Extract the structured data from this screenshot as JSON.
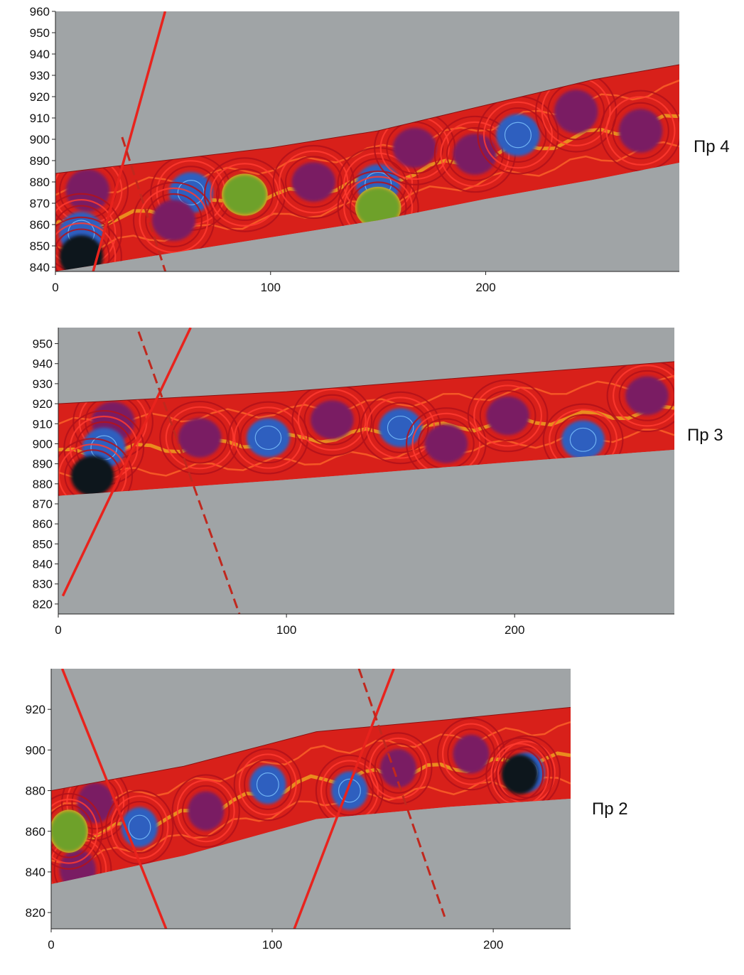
{
  "colors": {
    "background": "#a0a4a6",
    "fault_line": "#e8231d",
    "fault_dash": "#c0281e",
    "contour_fill": "#d8201a",
    "high": "#7a1f63",
    "low": "#2d5fbf",
    "deep_low": "#10131f",
    "mid_yellow": "#f0b020",
    "mid_green": "#6ea12b"
  },
  "chart_data": [
    {
      "type": "heatmap",
      "panel_label": "Пр 4",
      "xlim": [
        0,
        290
      ],
      "ylim": [
        838,
        960
      ],
      "x_ticks": [
        "0",
        "100",
        "200"
      ],
      "y_ticks": [
        "840",
        "850",
        "860",
        "870",
        "880",
        "890",
        "900",
        "910",
        "920",
        "930",
        "940",
        "950",
        "960"
      ],
      "section_top": [
        [
          0,
          884
        ],
        [
          50,
          890
        ],
        [
          100,
          896
        ],
        [
          150,
          904
        ],
        [
          200,
          916
        ],
        [
          250,
          928
        ],
        [
          290,
          935
        ]
      ],
      "section_bottom": [
        [
          0,
          838
        ],
        [
          50,
          846
        ],
        [
          100,
          854
        ],
        [
          150,
          862
        ],
        [
          200,
          872
        ],
        [
          250,
          881
        ],
        [
          290,
          889
        ]
      ],
      "faults": [
        {
          "style": "solid",
          "points": [
            [
              17,
              836
            ],
            [
              51,
              960
            ]
          ]
        },
        {
          "style": "dashed",
          "points": [
            [
              31,
              901
            ],
            [
              53,
              832
            ]
          ]
        }
      ],
      "anomalies": [
        {
          "kind": "high",
          "x": 15,
          "y": 876
        },
        {
          "kind": "low",
          "x": 12,
          "y": 856
        },
        {
          "kind": "deep-low",
          "x": 12,
          "y": 845
        },
        {
          "kind": "low",
          "x": 63,
          "y": 875
        },
        {
          "kind": "mid",
          "x": 88,
          "y": 874
        },
        {
          "kind": "high",
          "x": 120,
          "y": 880
        },
        {
          "kind": "high",
          "x": 55,
          "y": 862
        },
        {
          "kind": "low",
          "x": 150,
          "y": 879
        },
        {
          "kind": "mid",
          "x": 150,
          "y": 868
        },
        {
          "kind": "high",
          "x": 167,
          "y": 896
        },
        {
          "kind": "high",
          "x": 195,
          "y": 893
        },
        {
          "kind": "low",
          "x": 215,
          "y": 902
        },
        {
          "kind": "high",
          "x": 242,
          "y": 913
        },
        {
          "kind": "high",
          "x": 272,
          "y": 904
        }
      ]
    },
    {
      "type": "heatmap",
      "panel_label": "Пр 3",
      "xlim": [
        0,
        270
      ],
      "ylim": [
        815,
        958
      ],
      "x_ticks": [
        "0",
        "100",
        "200"
      ],
      "y_ticks": [
        "820",
        "830",
        "840",
        "850",
        "860",
        "870",
        "880",
        "890",
        "900",
        "910",
        "920",
        "930",
        "940",
        "950"
      ],
      "section_top": [
        [
          0,
          920
        ],
        [
          100,
          926
        ],
        [
          200,
          935
        ],
        [
          270,
          941
        ]
      ],
      "section_bottom": [
        [
          0,
          874
        ],
        [
          100,
          882
        ],
        [
          200,
          891
        ],
        [
          270,
          897
        ]
      ],
      "faults": [
        {
          "style": "solid",
          "points": [
            [
              2,
              824
            ],
            [
              58,
              958
            ]
          ]
        },
        {
          "style": "dashed",
          "points": [
            [
              33,
              963
            ],
            [
              85,
              797
            ]
          ]
        }
      ],
      "anomalies": [
        {
          "kind": "high",
          "x": 24,
          "y": 911
        },
        {
          "kind": "low",
          "x": 20,
          "y": 898
        },
        {
          "kind": "deep-low",
          "x": 15,
          "y": 884
        },
        {
          "kind": "high",
          "x": 62,
          "y": 903
        },
        {
          "kind": "low",
          "x": 92,
          "y": 903
        },
        {
          "kind": "high",
          "x": 120,
          "y": 912
        },
        {
          "kind": "low",
          "x": 150,
          "y": 908
        },
        {
          "kind": "high",
          "x": 170,
          "y": 900
        },
        {
          "kind": "high",
          "x": 197,
          "y": 914
        },
        {
          "kind": "low",
          "x": 230,
          "y": 902
        },
        {
          "kind": "high",
          "x": 258,
          "y": 924
        }
      ]
    },
    {
      "type": "heatmap",
      "panel_label": "Пр 2",
      "xlim": [
        0,
        235
      ],
      "ylim": [
        812,
        940
      ],
      "x_ticks": [
        "0",
        "100",
        "200"
      ],
      "y_ticks": [
        "820",
        "840",
        "860",
        "880",
        "900",
        "920"
      ],
      "section_top": [
        [
          0,
          880
        ],
        [
          60,
          892
        ],
        [
          120,
          909
        ],
        [
          180,
          915
        ],
        [
          235,
          921
        ]
      ],
      "section_bottom": [
        [
          0,
          834
        ],
        [
          60,
          848
        ],
        [
          120,
          866
        ],
        [
          180,
          872
        ],
        [
          235,
          876
        ]
      ],
      "faults": [
        {
          "style": "solid",
          "points": [
            [
              5,
              940
            ],
            [
              52,
              812
            ]
          ]
        },
        {
          "style": "solid",
          "points": [
            [
              110,
              812
            ],
            [
              155,
              940
            ]
          ]
        },
        {
          "style": "dashed",
          "points": [
            [
              137,
              947
            ],
            [
              178,
              818
            ]
          ]
        }
      ],
      "anomalies": [
        {
          "kind": "high",
          "x": 20,
          "y": 874
        },
        {
          "kind": "low",
          "x": 40,
          "y": 862
        },
        {
          "kind": "high",
          "x": 12,
          "y": 841
        },
        {
          "kind": "mid",
          "x": 8,
          "y": 860
        },
        {
          "kind": "high",
          "x": 70,
          "y": 870
        },
        {
          "kind": "low",
          "x": 98,
          "y": 883
        },
        {
          "kind": "low",
          "x": 135,
          "y": 880
        },
        {
          "kind": "high",
          "x": 157,
          "y": 891
        },
        {
          "kind": "high",
          "x": 190,
          "y": 898
        },
        {
          "kind": "low",
          "x": 215,
          "y": 889
        },
        {
          "kind": "deep-low",
          "x": 212,
          "y": 888
        }
      ]
    }
  ]
}
